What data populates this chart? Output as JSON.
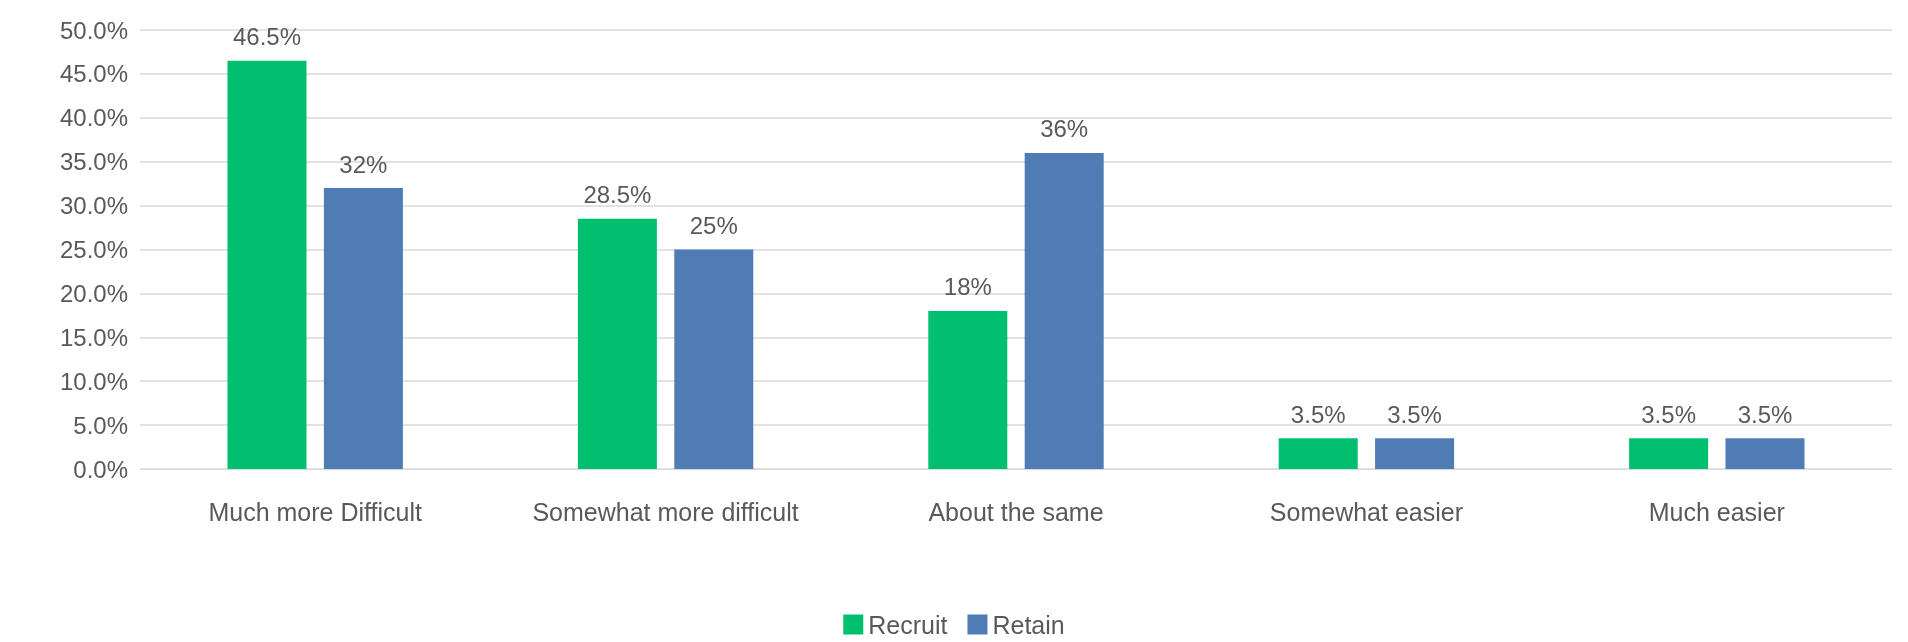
{
  "chart_data": {
    "type": "bar",
    "categories": [
      "Much more Difficult",
      "Somewhat more difficult",
      "About the same",
      "Somewhat easier",
      "Much easier"
    ],
    "series": [
      {
        "name": "Recruit",
        "color": "#00bf6f",
        "values": [
          46.5,
          28.5,
          18,
          3.5,
          3.5
        ],
        "value_labels": [
          "46.5%",
          "28.5%",
          "18%",
          "3.5%",
          "3.5%"
        ]
      },
      {
        "name": "Retain",
        "color": "#4f7cb5",
        "values": [
          32,
          25,
          36,
          3.5,
          3.5
        ],
        "value_labels": [
          "32%",
          "25%",
          "36%",
          "3.5%",
          "3.5%"
        ]
      }
    ],
    "ylim": [
      0,
      50
    ],
    "yticks": [
      {
        "value": 0,
        "label": "0.0%"
      },
      {
        "value": 5,
        "label": "5.0%"
      },
      {
        "value": 10,
        "label": "10.0%"
      },
      {
        "value": 15,
        "label": "15.0%"
      },
      {
        "value": 20,
        "label": "20.0%"
      },
      {
        "value": 25,
        "label": "25.0%"
      },
      {
        "value": 30,
        "label": "30.0%"
      },
      {
        "value": 35,
        "label": "35.0%"
      },
      {
        "value": 40,
        "label": "40.0%"
      },
      {
        "value": 45,
        "label": "45.0%"
      },
      {
        "value": 50,
        "label": "50.0%"
      }
    ],
    "grid": "y",
    "legend": "bottom"
  }
}
